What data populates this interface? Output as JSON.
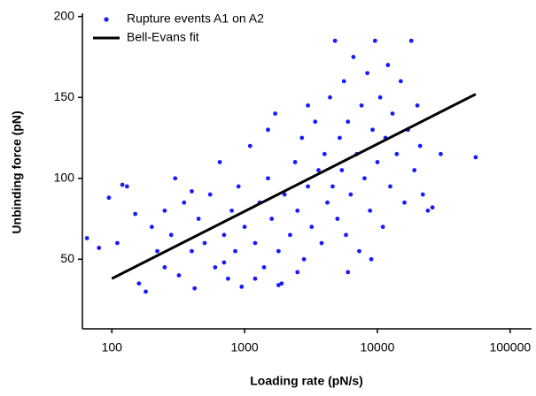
{
  "chart_data": {
    "type": "scatter",
    "x_label": "Loading rate (pN/s)",
    "y_label": "Unbinding force (pN)",
    "xscale": "log",
    "xlim": [
      60,
      145000
    ],
    "ylim": [
      7,
      202
    ],
    "xticks": [
      100,
      1000,
      10000,
      100000
    ],
    "yticks": [
      50,
      100,
      150,
      200
    ],
    "grid": false,
    "legend": "upper left",
    "series": [
      {
        "name": "Rupture events A1 on A2",
        "type": "scatter",
        "color": "#1a1aff",
        "x": [
          65,
          80,
          95,
          110,
          120,
          130,
          150,
          160,
          180,
          200,
          220,
          250,
          280,
          300,
          320,
          350,
          400,
          420,
          450,
          500,
          550,
          600,
          650,
          700,
          750,
          800,
          850,
          900,
          950,
          1000,
          1100,
          1200,
          1300,
          1400,
          1500,
          1600,
          1700,
          1800,
          1900,
          2000,
          2200,
          2400,
          2500,
          2700,
          2800,
          3000,
          3200,
          3400,
          3600,
          3800,
          4000,
          4200,
          4400,
          4600,
          4800,
          5000,
          5200,
          5400,
          5600,
          5800,
          6000,
          6300,
          6600,
          7000,
          7300,
          7600,
          8000,
          8400,
          8800,
          9200,
          9600,
          10000,
          10500,
          11000,
          11500,
          12000,
          12500,
          13000,
          14000,
          15000,
          16000,
          17000,
          18000,
          19000,
          20000,
          21000,
          22000,
          24000,
          26000,
          30000,
          55000,
          700,
          1200,
          1800,
          2500,
          400,
          250,
          1500,
          3000,
          6000,
          9000
        ],
        "values": [
          63,
          57,
          88,
          60,
          96,
          95,
          78,
          35,
          30,
          70,
          55,
          45,
          65,
          100,
          40,
          85,
          55,
          32,
          75,
          60,
          90,
          45,
          110,
          65,
          38,
          80,
          55,
          95,
          33,
          70,
          120,
          60,
          85,
          45,
          100,
          75,
          140,
          55,
          35,
          90,
          65,
          110,
          80,
          125,
          50,
          95,
          70,
          135,
          105,
          60,
          115,
          85,
          150,
          95,
          185,
          75,
          125,
          105,
          160,
          65,
          135,
          90,
          175,
          115,
          55,
          145,
          100,
          165,
          80,
          130,
          185,
          110,
          150,
          70,
          125,
          170,
          95,
          140,
          115,
          160,
          85,
          130,
          185,
          105,
          145,
          120,
          90,
          80,
          82,
          115,
          113,
          48,
          38,
          34,
          42,
          92,
          80,
          130,
          145,
          42,
          50
        ]
      },
      {
        "name": "Bell-Evans fit",
        "type": "line",
        "color": "#000000",
        "x": [
          100,
          55000
        ],
        "values": [
          38,
          152
        ]
      }
    ]
  }
}
